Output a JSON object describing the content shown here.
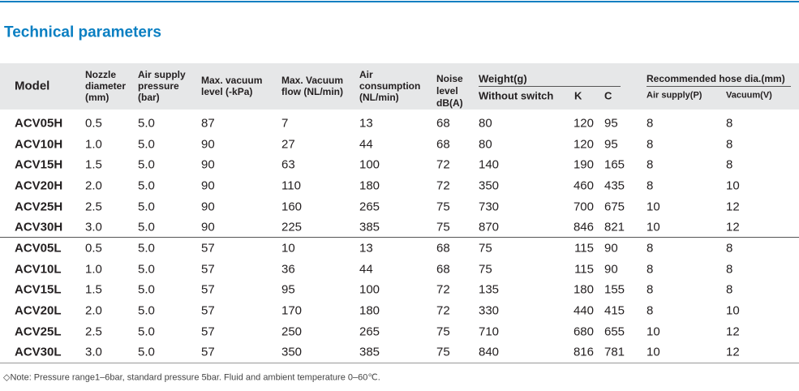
{
  "header": {
    "title": "Technical parameters"
  },
  "table": {
    "header": {
      "columns": [
        [
          "Model"
        ],
        [
          "Nozzle",
          "diameter",
          "(mm)"
        ],
        [
          "Air supply",
          "pressure",
          "(bar)"
        ],
        [
          "Max. vacuum",
          "level (-kPa)"
        ],
        [
          "Max. Vacuum",
          "flow  (NL/min)"
        ],
        [
          "Air",
          "consumption",
          "(NL/min)"
        ],
        [
          "Noise",
          "level",
          "dB(A)"
        ]
      ],
      "groups": [
        {
          "label": "Weight(g)",
          "subcolumns": [
            "Without switch",
            "K",
            "C"
          ]
        },
        {
          "label": "Recommended hose dia.(mm)",
          "subcolumns": [
            "Air supply(P)",
            "Vacuum(V)"
          ]
        }
      ]
    },
    "rows": [
      [
        "ACV05H",
        "0.5",
        "5.0",
        "87",
        "7",
        "13",
        "68",
        "80",
        "120",
        "95",
        "8",
        "8"
      ],
      [
        "ACV10H",
        "1.0",
        "5.0",
        "90",
        "27",
        "44",
        "68",
        "80",
        "120",
        "95",
        "8",
        "8"
      ],
      [
        "ACV15H",
        "1.5",
        "5.0",
        "90",
        "63",
        "100",
        "72",
        "140",
        "190",
        "165",
        "8",
        "8"
      ],
      [
        "ACV20H",
        "2.0",
        "5.0",
        "90",
        "110",
        "180",
        "72",
        "350",
        "460",
        "435",
        "8",
        "10"
      ],
      [
        "ACV25H",
        "2.5",
        "5.0",
        "90",
        "160",
        "265",
        "75",
        "730",
        "700",
        "675",
        "10",
        "12"
      ],
      [
        "ACV30H",
        "3.0",
        "5.0",
        "90",
        "225",
        "385",
        "75",
        "870",
        "846",
        "821",
        "10",
        "12"
      ],
      [
        "ACV05L",
        "0.5",
        "5.0",
        "57",
        "10",
        "13",
        "68",
        "75",
        "115",
        "90",
        "8",
        "8"
      ],
      [
        "ACV10L",
        "1.0",
        "5.0",
        "57",
        "36",
        "44",
        "68",
        "75",
        "115",
        "90",
        "8",
        "8"
      ],
      [
        "ACV15L",
        "1.5",
        "5.0",
        "57",
        "95",
        "100",
        "72",
        "135",
        "180",
        "155",
        "8",
        "8"
      ],
      [
        "ACV20L",
        "2.0",
        "5.0",
        "57",
        "170",
        "180",
        "72",
        "330",
        "440",
        "415",
        "8",
        "10"
      ],
      [
        "ACV25L",
        "2.5",
        "5.0",
        "57",
        "250",
        "265",
        "75",
        "710",
        "680",
        "655",
        "10",
        "12"
      ],
      [
        "ACV30L",
        "3.0",
        "5.0",
        "57",
        "350",
        "385",
        "75",
        "840",
        "816",
        "781",
        "10",
        "12"
      ]
    ]
  },
  "note": "◇Note: Pressure range1–6bar, standard pressure 5bar. Fluid and ambient temperature 0–60℃."
}
